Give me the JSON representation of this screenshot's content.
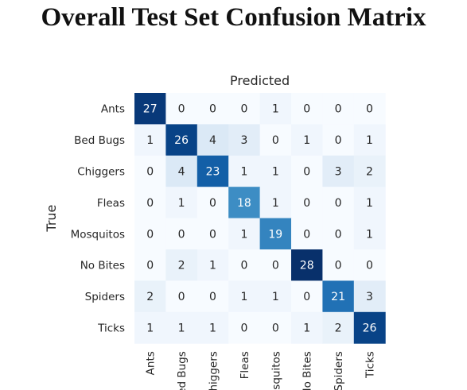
{
  "title": "Overall Test Set Confusion Matrix",
  "chart_data": {
    "type": "heatmap",
    "title": "Overall Test Set Confusion Matrix",
    "xlabel": "Predicted",
    "ylabel": "True",
    "x_label_position": "top",
    "row_labels": [
      "Ants",
      "Bed Bugs",
      "Chiggers",
      "Fleas",
      "Mosquitos",
      "No Bites",
      "Spiders",
      "Ticks"
    ],
    "col_labels": [
      "Ants",
      "Bed Bugs",
      "Chiggers",
      "Fleas",
      "Mosquitos",
      "No Bites",
      "Spiders",
      "Ticks"
    ],
    "values": [
      [
        27,
        0,
        0,
        0,
        1,
        0,
        0,
        0
      ],
      [
        1,
        26,
        4,
        3,
        0,
        1,
        0,
        1
      ],
      [
        0,
        4,
        23,
        1,
        1,
        0,
        3,
        2
      ],
      [
        0,
        1,
        0,
        18,
        1,
        0,
        0,
        1
      ],
      [
        0,
        0,
        0,
        1,
        19,
        0,
        0,
        1
      ],
      [
        0,
        2,
        1,
        0,
        0,
        28,
        0,
        0
      ],
      [
        2,
        0,
        0,
        1,
        1,
        0,
        21,
        3
      ],
      [
        1,
        1,
        1,
        0,
        0,
        1,
        2,
        26
      ]
    ],
    "colormap": "Blues",
    "vmin": 0,
    "vmax": 28,
    "annotated": true,
    "colorbar": false
  }
}
